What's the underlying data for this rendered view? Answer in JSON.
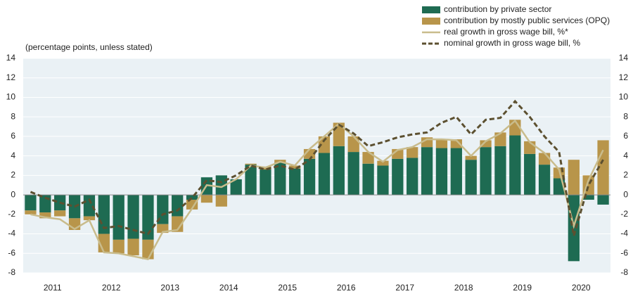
{
  "chart_data": {
    "type": "stacked_bar_line",
    "subtitle": "(percentage points, unless stated)",
    "year_groups": [
      "2011",
      "2012",
      "2013",
      "2014",
      "2015",
      "2016",
      "2017",
      "2018",
      "2019",
      "2020"
    ],
    "ylim": [
      -8,
      14
    ],
    "yticks": [
      -8,
      -6,
      -4,
      -2,
      0,
      2,
      4,
      6,
      8,
      10,
      12,
      14
    ],
    "y2lim": [
      -8,
      14
    ],
    "y2ticks": [
      -8,
      -6,
      -4,
      -2,
      0,
      2,
      4,
      6,
      8,
      10,
      12,
      14
    ],
    "series": [
      {
        "name": "contribution by private sector",
        "kind": "bar",
        "color": "#1e6b52",
        "values": [
          -1.6,
          -1.8,
          -1.6,
          -2.4,
          -2.2,
          -4.0,
          -4.6,
          -4.5,
          -4.6,
          -3.0,
          -2.2,
          -0.5,
          1.8,
          2.0,
          1.6,
          3.1,
          2.6,
          3.3,
          2.7,
          3.7,
          4.3,
          5.0,
          4.4,
          3.2,
          3.0,
          3.7,
          3.8,
          4.9,
          4.8,
          4.8,
          3.6,
          4.9,
          5.0,
          6.1,
          4.2,
          3.1,
          1.7,
          -6.8,
          -0.5,
          -1.0
        ]
      },
      {
        "name": "contribution by mostly public services (OPQ)",
        "kind": "bar",
        "color": "#b8954a",
        "values": [
          -0.4,
          -0.6,
          -0.6,
          -1.2,
          -0.4,
          -1.9,
          -1.4,
          -1.7,
          -2.0,
          -0.9,
          -1.6,
          -1.0,
          -0.8,
          -1.2,
          0,
          0.1,
          0.3,
          0.3,
          0.3,
          1.0,
          1.7,
          2.4,
          1.6,
          1.2,
          0.5,
          1.0,
          1.1,
          1.0,
          0.9,
          0.9,
          0.4,
          0.7,
          1.4,
          1.6,
          1.3,
          1.2,
          1.1,
          3.6,
          2.0,
          5.6
        ]
      },
      {
        "name": "real growth in gross wage bill, %*",
        "kind": "line",
        "color": "#c9bc8c",
        "values": [
          -2.0,
          -2.3,
          -2.5,
          -3.5,
          -2.6,
          -5.9,
          -6.0,
          -6.3,
          -6.6,
          -3.8,
          -3.6,
          -1.4,
          1.0,
          0.8,
          1.6,
          3.0,
          2.8,
          3.4,
          3.0,
          4.7,
          6.0,
          7.3,
          6.0,
          4.4,
          3.4,
          4.6,
          4.9,
          5.7,
          5.7,
          5.6,
          4.0,
          5.5,
          6.3,
          7.6,
          5.4,
          4.3,
          2.6,
          -3.2,
          1.5,
          4.6
        ]
      },
      {
        "name": "nominal growth in gross wage bill, %",
        "kind": "dashed",
        "color": "#5c5030",
        "values": [
          0.3,
          -0.3,
          -0.8,
          -1.2,
          -0.5,
          -3.4,
          -3.2,
          -3.6,
          -4.0,
          -2.0,
          -1.6,
          -0.3,
          1.5,
          1.3,
          2.0,
          3.0,
          2.6,
          3.0,
          2.6,
          3.6,
          5.6,
          7.2,
          6.3,
          5.0,
          5.4,
          5.9,
          6.2,
          6.4,
          7.4,
          8.0,
          6.2,
          7.7,
          7.9,
          9.6,
          8.0,
          6.0,
          4.4,
          -4.2,
          1.0,
          3.6
        ]
      }
    ]
  }
}
